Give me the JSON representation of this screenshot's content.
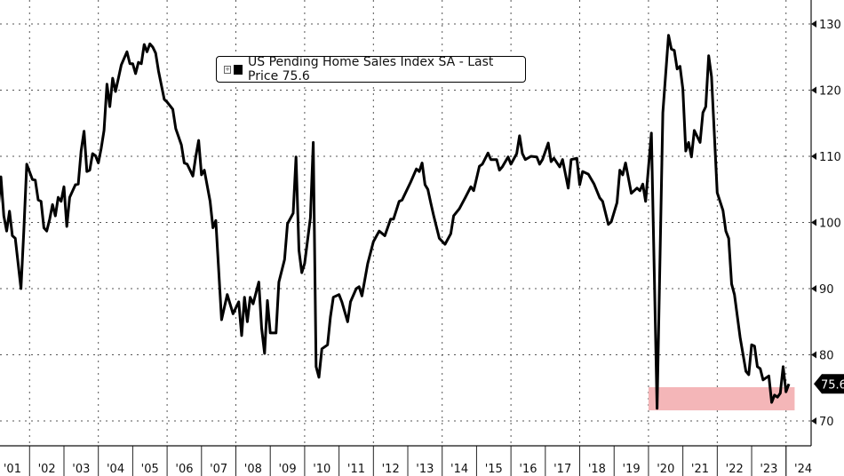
{
  "legend": {
    "expand_icon": "plus-box-icon",
    "label": "US Pending Home Sales Index SA - Last Price 75.6"
  },
  "chart_data": {
    "type": "line",
    "title": "",
    "xlabel": "",
    "ylabel": "",
    "x_range": [
      "2001-02",
      "2024-09"
    ],
    "ylim": [
      66,
      134
    ],
    "y_ticks": [
      70,
      80,
      90,
      100,
      110,
      120,
      130
    ],
    "y_axis_side": "right",
    "x_tick_labels": [
      "'01",
      "'02",
      "'03",
      "'04",
      "'05",
      "'06",
      "'07",
      "'08",
      "'09",
      "'10",
      "'11",
      "'12",
      "'13",
      "'14",
      "'15",
      "'16",
      "'17",
      "'18",
      "'19",
      "'20",
      "'21",
      "'22",
      "'23",
      "'24"
    ],
    "grid": "dotted, horizontal every 10, vertical every 2 years",
    "legend_placement": "top-center",
    "last_value": 75.6,
    "colors": {
      "line": "#000000",
      "highlight": "#f4b6b8",
      "last_label_bg": "#000000"
    },
    "highlight_band": {
      "x": [
        "2020-01",
        "2024-04"
      ],
      "y": [
        71.6,
        75.1
      ]
    },
    "series": [
      {
        "name": "US Pending Home Sales Index SA",
        "points": [
          [
            "2001-02",
            101.8
          ],
          [
            "2001-03",
            106.9
          ],
          [
            "2001-04",
            101
          ],
          [
            "2001-05",
            98.7
          ],
          [
            "2001-06",
            101.7
          ],
          [
            "2001-07",
            98
          ],
          [
            "2001-08",
            97.6
          ],
          [
            "2001-10",
            90
          ],
          [
            "2001-11",
            98.7
          ],
          [
            "2001-12",
            108.8
          ],
          [
            "2002-02",
            106.5
          ],
          [
            "2002-03",
            106.4
          ],
          [
            "2002-04",
            103.4
          ],
          [
            "2002-05",
            103.2
          ],
          [
            "2002-06",
            99.2
          ],
          [
            "2002-07",
            98.7
          ],
          [
            "2002-08",
            100.5
          ],
          [
            "2002-09",
            102.7
          ],
          [
            "2002-10",
            101
          ],
          [
            "2002-11",
            103.8
          ],
          [
            "2002-12",
            103.2
          ],
          [
            "2003-01",
            105.4
          ],
          [
            "2003-02",
            99.4
          ],
          [
            "2003-03",
            103.8
          ],
          [
            "2003-05",
            105.7
          ],
          [
            "2003-06",
            105.8
          ],
          [
            "2003-07",
            110.8
          ],
          [
            "2003-08",
            113.8
          ],
          [
            "2003-09",
            107.7
          ],
          [
            "2003-10",
            107.9
          ],
          [
            "2003-11",
            110.4
          ],
          [
            "2003-12",
            110.1
          ],
          [
            "2004-01",
            109
          ],
          [
            "2004-02",
            111.2
          ],
          [
            "2004-03",
            113.9
          ],
          [
            "2004-04",
            120.9
          ],
          [
            "2004-05",
            117.5
          ],
          [
            "2004-06",
            121.8
          ],
          [
            "2004-07",
            119.8
          ],
          [
            "2004-08",
            121.8
          ],
          [
            "2004-09",
            123.8
          ],
          [
            "2004-11",
            125.8
          ],
          [
            "2004-12",
            124
          ],
          [
            "2005-01",
            124
          ],
          [
            "2005-02",
            122.5
          ],
          [
            "2005-03",
            124.2
          ],
          [
            "2005-04",
            124
          ],
          [
            "2005-05",
            126.9
          ],
          [
            "2005-06",
            125.8
          ],
          [
            "2005-07",
            127
          ],
          [
            "2005-08",
            126.5
          ],
          [
            "2005-09",
            125.6
          ],
          [
            "2005-10",
            122.9
          ],
          [
            "2005-12",
            118.6
          ],
          [
            "2006-01",
            118.2
          ],
          [
            "2006-03",
            117.1
          ],
          [
            "2006-04",
            114.2
          ],
          [
            "2006-06",
            111.7
          ],
          [
            "2006-07",
            109
          ],
          [
            "2006-08",
            108.8
          ],
          [
            "2006-10",
            107
          ],
          [
            "2006-11",
            109.9
          ],
          [
            "2006-12",
            112.4
          ],
          [
            "2007-01",
            107.2
          ],
          [
            "2007-02",
            107.9
          ],
          [
            "2007-04",
            103.2
          ],
          [
            "2007-05",
            99.2
          ],
          [
            "2007-06",
            100.3
          ],
          [
            "2007-08",
            85.3
          ],
          [
            "2007-10",
            89.1
          ],
          [
            "2007-12",
            86.2
          ],
          [
            "2008-02",
            88
          ],
          [
            "2008-03",
            82.9
          ],
          [
            "2008-04",
            88.7
          ],
          [
            "2008-05",
            85
          ],
          [
            "2008-06",
            88.7
          ],
          [
            "2008-07",
            87.7
          ],
          [
            "2008-09",
            91
          ],
          [
            "2008-10",
            84
          ],
          [
            "2008-11",
            80.2
          ],
          [
            "2008-12",
            88.2
          ],
          [
            "2009-01",
            83.3
          ],
          [
            "2009-03",
            83.3
          ],
          [
            "2009-04",
            91
          ],
          [
            "2009-06",
            94.4
          ],
          [
            "2009-07",
            99.8
          ],
          [
            "2009-09",
            101.4
          ],
          [
            "2009-10",
            109.9
          ],
          [
            "2009-11",
            95.8
          ],
          [
            "2009-12",
            92.4
          ],
          [
            "2010-01",
            93.8
          ],
          [
            "2010-03",
            100.7
          ],
          [
            "2010-04",
            112.1
          ],
          [
            "2010-05",
            78.2
          ],
          [
            "2010-06",
            76.6
          ],
          [
            "2010-07",
            80.9
          ],
          [
            "2010-09",
            81.5
          ],
          [
            "2010-10",
            85.7
          ],
          [
            "2010-11",
            88.7
          ],
          [
            "2011-01",
            89.1
          ],
          [
            "2011-02",
            88
          ],
          [
            "2011-04",
            85
          ],
          [
            "2011-05",
            88
          ],
          [
            "2011-07",
            90
          ],
          [
            "2011-08",
            90.3
          ],
          [
            "2011-09",
            88.9
          ],
          [
            "2011-11",
            93.8
          ],
          [
            "2012-01",
            97.1
          ],
          [
            "2012-03",
            98.7
          ],
          [
            "2012-05",
            98
          ],
          [
            "2012-07",
            100.5
          ],
          [
            "2012-08",
            100.5
          ],
          [
            "2012-10",
            103.2
          ],
          [
            "2012-11",
            103.4
          ],
          [
            "2013-02",
            106.1
          ],
          [
            "2013-04",
            108.1
          ],
          [
            "2013-05",
            107.7
          ],
          [
            "2013-06",
            109
          ],
          [
            "2013-07",
            105.7
          ],
          [
            "2013-08",
            105
          ],
          [
            "2013-09",
            103
          ],
          [
            "2013-10",
            101.1
          ],
          [
            "2013-12",
            97.6
          ],
          [
            "2014-02",
            96.7
          ],
          [
            "2014-04",
            98.3
          ],
          [
            "2014-05",
            101
          ],
          [
            "2014-07",
            102.1
          ],
          [
            "2014-09",
            103.7
          ],
          [
            "2014-11",
            105.4
          ],
          [
            "2014-12",
            104.8
          ],
          [
            "2015-02",
            108.5
          ],
          [
            "2015-03",
            108.8
          ],
          [
            "2015-05",
            110.5
          ],
          [
            "2015-06",
            109.5
          ],
          [
            "2015-08",
            109.5
          ],
          [
            "2015-09",
            107.9
          ],
          [
            "2015-10",
            108.4
          ],
          [
            "2015-12",
            109.9
          ],
          [
            "2016-01",
            108.8
          ],
          [
            "2016-03",
            110.4
          ],
          [
            "2016-04",
            113.1
          ],
          [
            "2016-05",
            110.4
          ],
          [
            "2016-06",
            109.5
          ],
          [
            "2016-08",
            110
          ],
          [
            "2016-10",
            109.9
          ],
          [
            "2016-11",
            108.8
          ],
          [
            "2016-12",
            109.5
          ],
          [
            "2017-02",
            112
          ],
          [
            "2017-03",
            109.2
          ],
          [
            "2017-04",
            109.7
          ],
          [
            "2017-06",
            108.4
          ],
          [
            "2017-07",
            109.5
          ],
          [
            "2017-09",
            105.2
          ],
          [
            "2017-10",
            109.5
          ],
          [
            "2017-12",
            109.7
          ],
          [
            "2018-01",
            105.7
          ],
          [
            "2018-02",
            107.7
          ],
          [
            "2018-04",
            107.3
          ],
          [
            "2018-06",
            105.8
          ],
          [
            "2018-08",
            103.7
          ],
          [
            "2018-09",
            103.2
          ],
          [
            "2018-11",
            99.7
          ],
          [
            "2018-12",
            100.1
          ],
          [
            "2019-02",
            103
          ],
          [
            "2019-03",
            107.9
          ],
          [
            "2019-04",
            107.2
          ],
          [
            "2019-05",
            109
          ],
          [
            "2019-07",
            104.4
          ],
          [
            "2019-09",
            105.2
          ],
          [
            "2019-10",
            104.8
          ],
          [
            "2019-11",
            105.8
          ],
          [
            "2019-12",
            103.2
          ],
          [
            "2020-02",
            113.5
          ],
          [
            "2020-04",
            71.9
          ],
          [
            "2020-06",
            116.6
          ],
          [
            "2020-08",
            128.3
          ],
          [
            "2020-09",
            126.2
          ],
          [
            "2020-10",
            126
          ],
          [
            "2020-11",
            123.2
          ],
          [
            "2020-12",
            123.6
          ],
          [
            "2021-01",
            120.2
          ],
          [
            "2021-02",
            110.8
          ],
          [
            "2021-03",
            112.1
          ],
          [
            "2021-04",
            109.9
          ],
          [
            "2021-05",
            113.9
          ],
          [
            "2021-07",
            112.1
          ],
          [
            "2021-08",
            116.6
          ],
          [
            "2021-09",
            117.5
          ],
          [
            "2021-10",
            125.2
          ],
          [
            "2021-11",
            122
          ],
          [
            "2022-01",
            104.5
          ],
          [
            "2022-03",
            101.8
          ],
          [
            "2022-04",
            98.7
          ],
          [
            "2022-05",
            97.6
          ],
          [
            "2022-06",
            90.7
          ],
          [
            "2022-07",
            89.1
          ],
          [
            "2022-09",
            82.6
          ],
          [
            "2022-11",
            77.5
          ],
          [
            "2022-12",
            77
          ],
          [
            "2023-01",
            81.5
          ],
          [
            "2023-02",
            81.3
          ],
          [
            "2023-03",
            78.2
          ],
          [
            "2023-04",
            77.9
          ],
          [
            "2023-05",
            76.2
          ],
          [
            "2023-07",
            76.8
          ],
          [
            "2023-08",
            72.8
          ],
          [
            "2023-09",
            73.9
          ],
          [
            "2023-10",
            73.6
          ],
          [
            "2023-11",
            74.2
          ],
          [
            "2023-12",
            78.2
          ],
          [
            "2024-01",
            74.4
          ],
          [
            "2024-02",
            75.6
          ]
        ]
      }
    ]
  }
}
